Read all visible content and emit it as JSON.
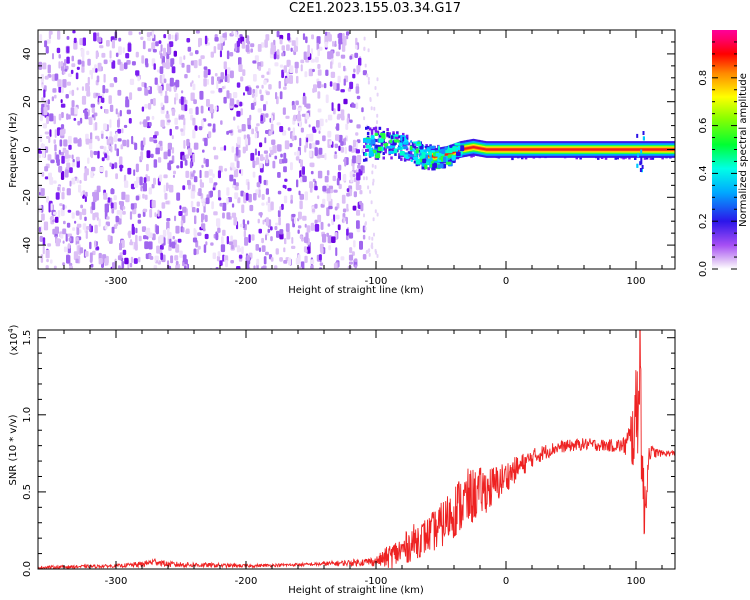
{
  "title": "C2E1.2023.155.03.34.G17",
  "colors": {
    "snr_line": "#ee2222",
    "scatter_purple": "#7a00e8",
    "band_core": "#ee1c1c"
  },
  "chart_data": [
    {
      "type": "heatmap",
      "xlabel": "Height of straight line (km)",
      "ylabel": "Frequency (Hz)",
      "xlim": [
        -360,
        130
      ],
      "ylim": [
        -50,
        50
      ],
      "xticks": [
        -300,
        -200,
        -100,
        0,
        100
      ],
      "xtick_labels": [
        "-300",
        "-200",
        "-100",
        "0",
        "100"
      ],
      "yticks": [
        -40,
        -20,
        0,
        20,
        40
      ],
      "ytick_labels": [
        "-40",
        "-20",
        "0",
        "20",
        "40"
      ],
      "noise_region_x": [
        -360,
        -110
      ],
      "signal_band": {
        "x": [
          -110,
          -95,
          -80,
          -65,
          -55,
          -45,
          -35,
          -25,
          -15,
          0,
          50,
          100,
          105,
          130
        ],
        "center_freq": [
          3,
          3,
          2,
          -2,
          -3,
          -2,
          0,
          1,
          0,
          0,
          0,
          0,
          0,
          0
        ]
      },
      "colorbar": {
        "label": "Normalized spectral amplitude",
        "range": [
          0.0,
          1.0
        ],
        "ticks": [
          0.0,
          0.2,
          0.4,
          0.6,
          0.8
        ],
        "tick_labels": [
          "0.0",
          "0.2",
          "0.4",
          "0.6",
          "0.8"
        ]
      }
    },
    {
      "type": "line",
      "xlabel": "Height of straight line (km)",
      "ylabel": "SNR (10 * v/v)",
      "y_multiplier_label": "(x10",
      "y_multiplier_exp": "4",
      "y_multiplier_close": ")",
      "xlim": [
        -360,
        130
      ],
      "ylim": [
        0,
        1.55
      ],
      "xticks": [
        -300,
        -200,
        -100,
        0,
        100
      ],
      "xtick_labels": [
        "-300",
        "-200",
        "-100",
        "0",
        "100"
      ],
      "yticks": [
        0,
        0.5,
        1.0,
        1.5
      ],
      "ytick_labels": [
        "0.0",
        "0.5",
        "1.0",
        "1.5"
      ],
      "series": [
        {
          "x": [
            -360,
            -300,
            -280,
            -270,
            -260,
            -200,
            -150,
            -120,
            -100,
            -90,
            -80,
            -70,
            -60,
            -50,
            -40,
            -30,
            -20,
            -10,
            0,
            10,
            20,
            30,
            40,
            60,
            80,
            90,
            95,
            100,
            103,
            106,
            110,
            120,
            130
          ],
          "values": [
            0.01,
            0.02,
            0.03,
            0.05,
            0.03,
            0.02,
            0.03,
            0.04,
            0.05,
            0.08,
            0.12,
            0.18,
            0.22,
            0.28,
            0.38,
            0.45,
            0.5,
            0.53,
            0.6,
            0.66,
            0.72,
            0.76,
            0.79,
            0.81,
            0.8,
            0.8,
            0.82,
            0.95,
            1.4,
            0.3,
            0.76,
            0.75,
            0.75
          ],
          "amp": [
            0.01,
            0.01,
            0.02,
            0.02,
            0.02,
            0.01,
            0.01,
            0.02,
            0.03,
            0.08,
            0.1,
            0.12,
            0.12,
            0.15,
            0.18,
            0.2,
            0.16,
            0.14,
            0.1,
            0.08,
            0.06,
            0.05,
            0.04,
            0.04,
            0.04,
            0.05,
            0.15,
            0.35,
            0.5,
            0.3,
            0.05,
            0.02,
            0.02
          ]
        }
      ]
    }
  ]
}
